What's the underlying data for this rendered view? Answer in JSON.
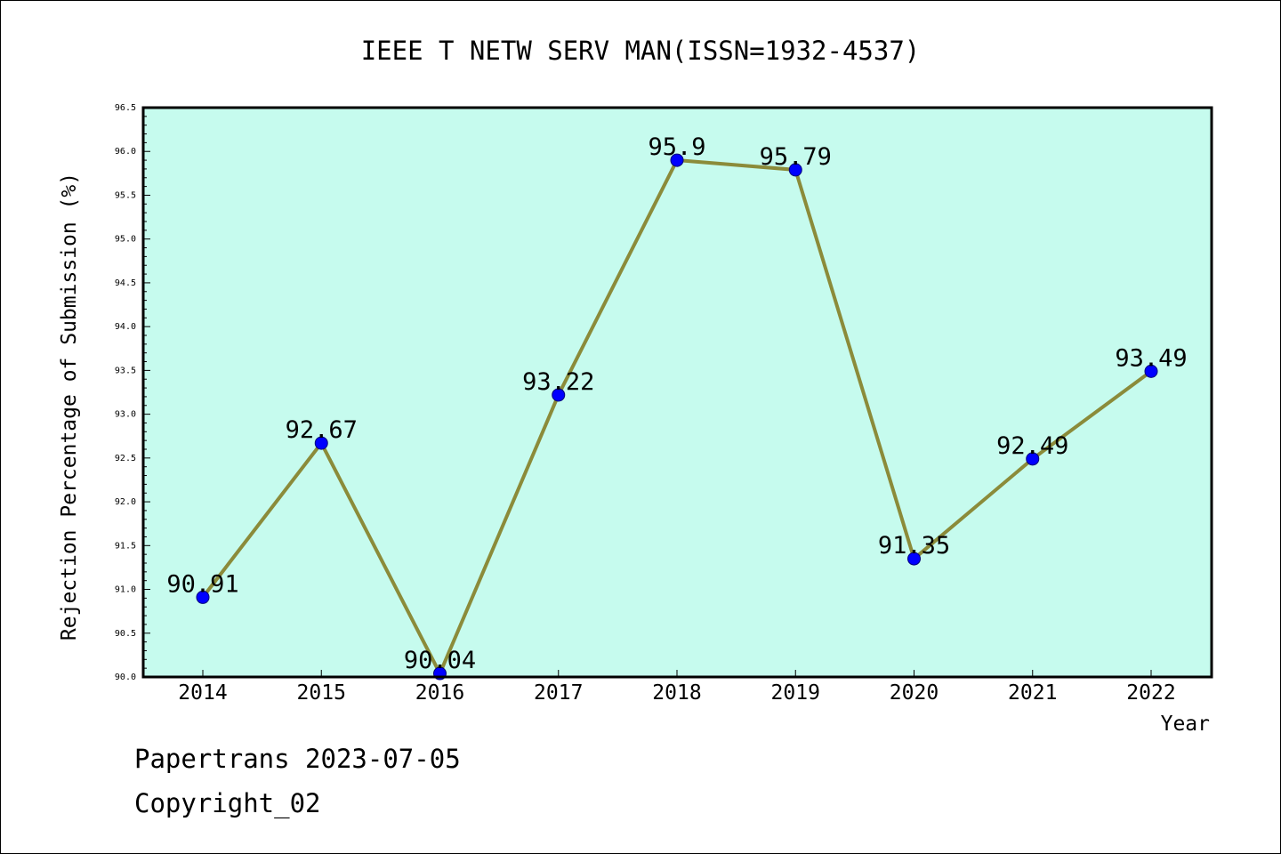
{
  "chart_data": {
    "type": "line",
    "title": "IEEE T NETW SERV MAN(ISSN=1932-4537)",
    "xlabel": "Year",
    "ylabel": "Rejection Percentage of Submission (%)",
    "categories": [
      "2014",
      "2015",
      "2016",
      "2017",
      "2018",
      "2019",
      "2020",
      "2021",
      "2022"
    ],
    "series": [
      {
        "values": [
          90.91,
          92.67,
          90.04,
          93.22,
          95.9,
          95.79,
          91.35,
          92.49,
          93.49
        ],
        "labels": [
          "90.91",
          "92.67",
          "90.04",
          "93.22",
          "95.9",
          "95.79",
          "91.35",
          "92.49",
          "93.49"
        ]
      }
    ],
    "ylim": [
      90.0,
      96.5
    ],
    "yticks": [
      "90.0",
      "90.5",
      "91.0",
      "91.5",
      "92.0",
      "92.5",
      "93.0",
      "93.5",
      "94.0",
      "94.5",
      "95.0",
      "95.5",
      "96.0",
      "96.5"
    ],
    "grid": false,
    "colors": {
      "plot_background": "#c6fbee",
      "line": "#8b8b3a",
      "marker": "#0000ff"
    }
  },
  "footer": {
    "line1": "Papertrans 2023-07-05",
    "line2": "Copyright_02"
  }
}
